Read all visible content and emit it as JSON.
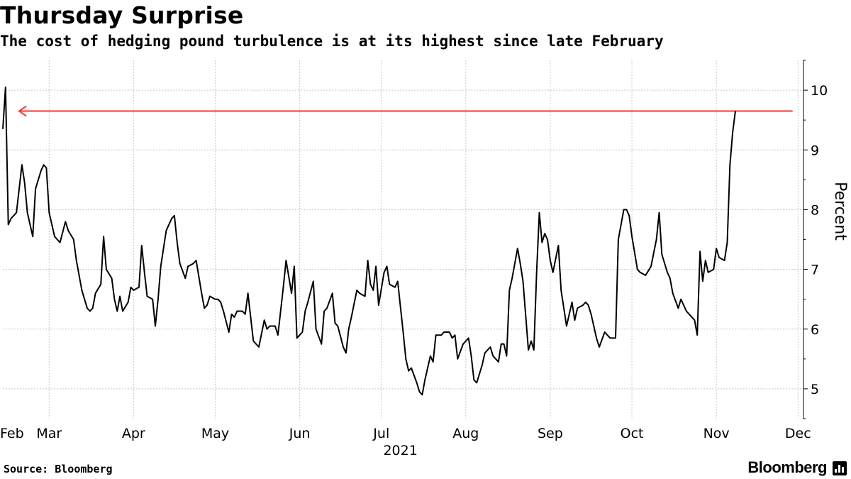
{
  "header": {
    "title": "Thursday Surprise",
    "subtitle": "The cost of hedging pound turbulence is at its highest since late February"
  },
  "footer": {
    "source": "Source: Bloomberg",
    "brand": "Bloomberg",
    "brand_icon": "bloomberg-terminal-icon"
  },
  "chart_data": {
    "type": "line",
    "xlabel": "",
    "ylabel": "Percent",
    "year_label": "2021",
    "ylim": [
      4.5,
      10.5
    ],
    "yticks": [
      5,
      6,
      7,
      8,
      9,
      10
    ],
    "x_domain": [
      0,
      294
    ],
    "x_ticks": [
      {
        "label": "Feb",
        "day": 1
      },
      {
        "label": "Mar",
        "day": 17
      },
      {
        "label": "Apr",
        "day": 48
      },
      {
        "label": "May",
        "day": 78
      },
      {
        "label": "Jun",
        "day": 109
      },
      {
        "label": "Jul",
        "day": 139
      },
      {
        "label": "Aug",
        "day": 170
      },
      {
        "label": "Sep",
        "day": 201
      },
      {
        "label": "Oct",
        "day": 231
      },
      {
        "label": "Nov",
        "day": 262
      },
      {
        "label": "Dec",
        "day": 292
      }
    ],
    "grid": true,
    "y_axis_side": "right",
    "line_color": "#000000",
    "annotation": {
      "type": "arrow",
      "from_day": 290,
      "to_day": 6,
      "y": 9.65,
      "color": "#ff3333"
    },
    "series": [
      {
        "points": [
          [
            0,
            9.35
          ],
          [
            1,
            10.05
          ],
          [
            2,
            7.75
          ],
          [
            3,
            7.85
          ],
          [
            5,
            7.95
          ],
          [
            7,
            8.75
          ],
          [
            8,
            8.45
          ],
          [
            9,
            7.95
          ],
          [
            11,
            7.55
          ],
          [
            12,
            8.35
          ],
          [
            14,
            8.65
          ],
          [
            15,
            8.75
          ],
          [
            16,
            8.7
          ],
          [
            17,
            7.95
          ],
          [
            19,
            7.55
          ],
          [
            20,
            7.5
          ],
          [
            21,
            7.45
          ],
          [
            23,
            7.8
          ],
          [
            24,
            7.65
          ],
          [
            26,
            7.5
          ],
          [
            27,
            7.15
          ],
          [
            29,
            6.65
          ],
          [
            31,
            6.35
          ],
          [
            32,
            6.3
          ],
          [
            33,
            6.35
          ],
          [
            34,
            6.6
          ],
          [
            36,
            6.75
          ],
          [
            37,
            7.55
          ],
          [
            38,
            7.0
          ],
          [
            40,
            6.85
          ],
          [
            41,
            6.5
          ],
          [
            42,
            6.3
          ],
          [
            43,
            6.55
          ],
          [
            44,
            6.3
          ],
          [
            46,
            6.45
          ],
          [
            47,
            6.7
          ],
          [
            48,
            6.65
          ],
          [
            50,
            6.7
          ],
          [
            51,
            7.4
          ],
          [
            52,
            6.95
          ],
          [
            53,
            6.55
          ],
          [
            55,
            6.5
          ],
          [
            56,
            6.05
          ],
          [
            57,
            6.5
          ],
          [
            58,
            7.05
          ],
          [
            60,
            7.65
          ],
          [
            62,
            7.85
          ],
          [
            63,
            7.9
          ],
          [
            64,
            7.45
          ],
          [
            65,
            7.1
          ],
          [
            67,
            6.85
          ],
          [
            68,
            7.05
          ],
          [
            70,
            7.1
          ],
          [
            71,
            7.15
          ],
          [
            73,
            6.6
          ],
          [
            74,
            6.35
          ],
          [
            75,
            6.4
          ],
          [
            76,
            6.55
          ],
          [
            78,
            6.5
          ],
          [
            79,
            6.5
          ],
          [
            80,
            6.45
          ],
          [
            81,
            6.3
          ],
          [
            83,
            5.95
          ],
          [
            84,
            6.25
          ],
          [
            85,
            6.2
          ],
          [
            86,
            6.3
          ],
          [
            88,
            6.3
          ],
          [
            89,
            6.25
          ],
          [
            90,
            6.6
          ],
          [
            92,
            5.8
          ],
          [
            94,
            5.7
          ],
          [
            96,
            6.15
          ],
          [
            97,
            6.0
          ],
          [
            98,
            6.05
          ],
          [
            100,
            6.05
          ],
          [
            101,
            5.9
          ],
          [
            103,
            6.7
          ],
          [
            104,
            7.15
          ],
          [
            106,
            6.6
          ],
          [
            107,
            7.05
          ],
          [
            108,
            5.85
          ],
          [
            109,
            5.9
          ],
          [
            110,
            5.95
          ],
          [
            111,
            6.3
          ],
          [
            112,
            6.45
          ],
          [
            114,
            6.8
          ],
          [
            115,
            6.0
          ],
          [
            117,
            5.75
          ],
          [
            118,
            6.3
          ],
          [
            119,
            6.35
          ],
          [
            121,
            6.6
          ],
          [
            122,
            6.1
          ],
          [
            123,
            6.05
          ],
          [
            125,
            5.7
          ],
          [
            126,
            5.6
          ],
          [
            127,
            6.0
          ],
          [
            128,
            6.2
          ],
          [
            130,
            6.65
          ],
          [
            131,
            6.6
          ],
          [
            133,
            6.55
          ],
          [
            134,
            7.15
          ],
          [
            135,
            6.75
          ],
          [
            136,
            6.65
          ],
          [
            137,
            7.05
          ],
          [
            138,
            6.4
          ],
          [
            140,
            6.95
          ],
          [
            141,
            7.05
          ],
          [
            142,
            6.75
          ],
          [
            144,
            6.7
          ],
          [
            145,
            6.8
          ],
          [
            147,
            5.95
          ],
          [
            148,
            5.5
          ],
          [
            149,
            5.3
          ],
          [
            150,
            5.35
          ],
          [
            152,
            5.1
          ],
          [
            153,
            4.95
          ],
          [
            154,
            4.9
          ],
          [
            155,
            5.15
          ],
          [
            157,
            5.55
          ],
          [
            158,
            5.45
          ],
          [
            159,
            5.9
          ],
          [
            160,
            5.9
          ],
          [
            161,
            5.9
          ],
          [
            162,
            5.95
          ],
          [
            164,
            5.95
          ],
          [
            165,
            5.85
          ],
          [
            166,
            5.9
          ],
          [
            167,
            5.5
          ],
          [
            169,
            5.75
          ],
          [
            171,
            5.85
          ],
          [
            172,
            5.55
          ],
          [
            173,
            5.15
          ],
          [
            174,
            5.1
          ],
          [
            176,
            5.4
          ],
          [
            177,
            5.6
          ],
          [
            179,
            5.7
          ],
          [
            180,
            5.55
          ],
          [
            182,
            5.45
          ],
          [
            183,
            5.75
          ],
          [
            184,
            5.75
          ],
          [
            185,
            5.55
          ],
          [
            186,
            6.65
          ],
          [
            187,
            6.85
          ],
          [
            189,
            7.35
          ],
          [
            190,
            7.1
          ],
          [
            191,
            6.8
          ],
          [
            193,
            5.65
          ],
          [
            194,
            5.8
          ],
          [
            195,
            5.65
          ],
          [
            196,
            6.95
          ],
          [
            197,
            7.95
          ],
          [
            198,
            7.45
          ],
          [
            199,
            7.6
          ],
          [
            200,
            7.5
          ],
          [
            201,
            7.15
          ],
          [
            202,
            6.95
          ],
          [
            204,
            7.4
          ],
          [
            205,
            6.65
          ],
          [
            207,
            6.05
          ],
          [
            208,
            6.25
          ],
          [
            209,
            6.45
          ],
          [
            210,
            6.15
          ],
          [
            211,
            6.35
          ],
          [
            213,
            6.4
          ],
          [
            214,
            6.45
          ],
          [
            215,
            6.4
          ],
          [
            216,
            6.25
          ],
          [
            218,
            5.85
          ],
          [
            219,
            5.7
          ],
          [
            221,
            5.95
          ],
          [
            222,
            5.9
          ],
          [
            223,
            5.85
          ],
          [
            225,
            5.85
          ],
          [
            226,
            7.5
          ],
          [
            228,
            8.0
          ],
          [
            229,
            8.0
          ],
          [
            230,
            7.9
          ],
          [
            231,
            7.55
          ],
          [
            233,
            7.0
          ],
          [
            234,
            6.95
          ],
          [
            236,
            6.9
          ],
          [
            238,
            7.05
          ],
          [
            240,
            7.5
          ],
          [
            241,
            7.95
          ],
          [
            242,
            7.25
          ],
          [
            244,
            6.95
          ],
          [
            245,
            6.85
          ],
          [
            246,
            6.6
          ],
          [
            248,
            6.35
          ],
          [
            249,
            6.5
          ],
          [
            251,
            6.3
          ],
          [
            252,
            6.25
          ],
          [
            254,
            6.15
          ],
          [
            255,
            5.9
          ],
          [
            256,
            7.3
          ],
          [
            257,
            6.8
          ],
          [
            258,
            7.15
          ],
          [
            259,
            6.95
          ],
          [
            261,
            7.0
          ],
          [
            262,
            7.35
          ],
          [
            263,
            7.2
          ],
          [
            265,
            7.15
          ],
          [
            266,
            7.45
          ],
          [
            267,
            8.75
          ],
          [
            268,
            9.3
          ],
          [
            269,
            9.65
          ]
        ]
      }
    ]
  }
}
